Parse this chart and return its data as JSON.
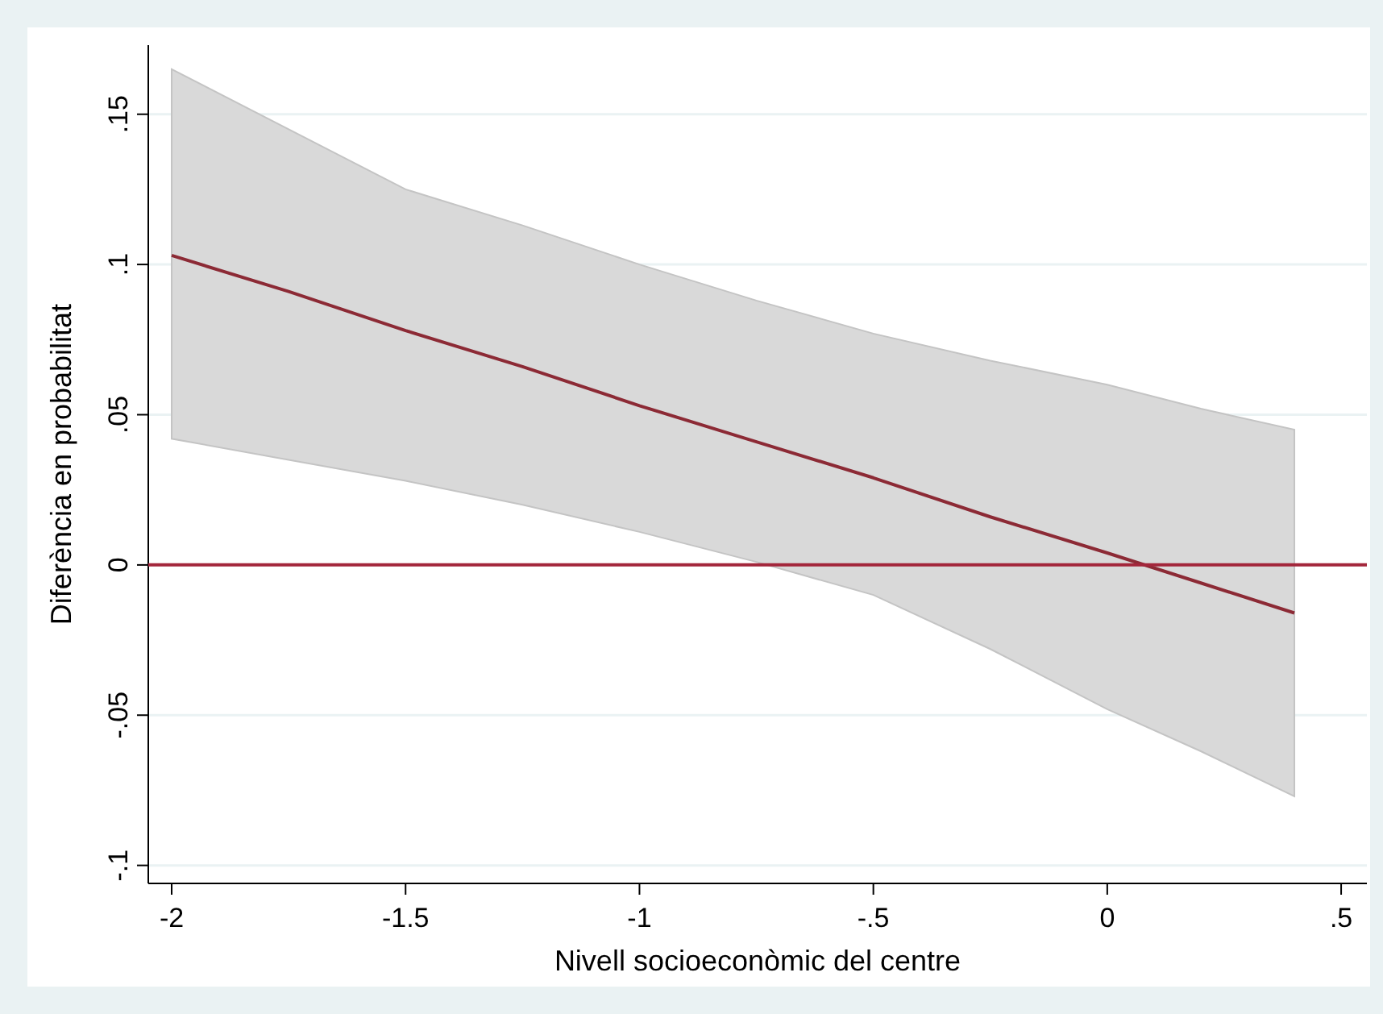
{
  "chart_data": {
    "type": "line",
    "xlabel": "Nivell socioeconòmic del centre",
    "ylabel": "Diferència en probabilitat",
    "xlim": [
      -2.05,
      0.555
    ],
    "ylim": [
      -0.106,
      0.173
    ],
    "xticks": [
      -2,
      -1.5,
      -1,
      {
        "value": -0.5,
        "label": "-.5"
      },
      0,
      {
        "value": 0.5,
        "label": ".5"
      }
    ],
    "yticks": [
      {
        "value": -0.1,
        "label": "-.1"
      },
      {
        "value": -0.05,
        "label": "-.05"
      },
      0,
      {
        "value": 0.05,
        "label": ".05"
      },
      {
        "value": 0.1,
        "label": ".1"
      },
      {
        "value": 0.15,
        "label": ".15"
      }
    ],
    "grid": "y",
    "marker": "none",
    "line_style": "solid",
    "ref_lines": [
      {
        "axis": "y",
        "value": 0,
        "color": "#a3263b"
      }
    ],
    "series": [
      {
        "color": "#8c2a35",
        "x": [
          -2,
          -1.75,
          -1.5,
          -1.25,
          -1,
          -0.75,
          -0.5,
          -0.25,
          0,
          0.2,
          0.4
        ],
        "values": [
          0.103,
          0.091,
          0.078,
          0.066,
          0.053,
          0.041,
          0.029,
          0.016,
          0.004,
          -0.006,
          -0.016
        ],
        "lower": [
          0.042,
          0.035,
          0.028,
          0.02,
          0.011,
          0.001,
          -0.01,
          -0.028,
          -0.048,
          -0.062,
          -0.077
        ],
        "upper": [
          0.165,
          0.145,
          0.125,
          0.113,
          0.1,
          0.088,
          0.077,
          0.068,
          0.06,
          0.052,
          0.045
        ]
      }
    ]
  }
}
